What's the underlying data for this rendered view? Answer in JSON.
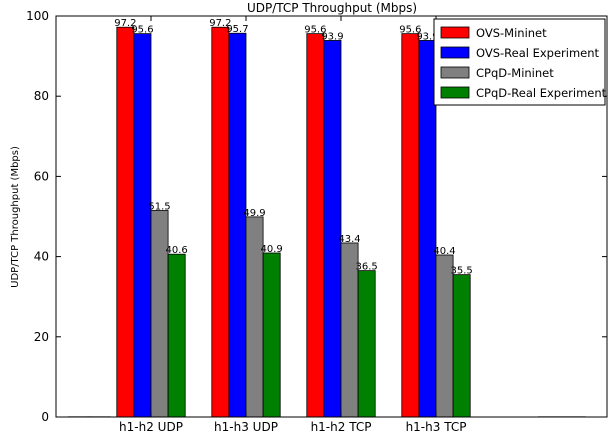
{
  "chart_data": {
    "type": "bar",
    "title": "UDP/TCP Throughput (Mbps)",
    "xlabel": "",
    "ylabel": "UDP/TCP Throughput (Mbps)",
    "ylim": [
      0,
      100
    ],
    "yticks": [
      0,
      20,
      40,
      60,
      80,
      100
    ],
    "grid": false,
    "legend_position": "top-right",
    "categories": [
      "h1-h2 UDP",
      "h1-h3 UDP",
      "h1-h2 TCP",
      "h1-h3 TCP"
    ],
    "series": [
      {
        "name": "OVS-Mininet",
        "color": "#ff0000",
        "values": [
          97.2,
          97.2,
          95.6,
          95.6
        ]
      },
      {
        "name": "OVS-Real Experiment",
        "color": "#0000ff",
        "values": [
          95.6,
          95.7,
          93.9,
          93.9
        ]
      },
      {
        "name": "CPqD-Mininet",
        "color": "#808080",
        "values": [
          51.5,
          49.9,
          43.4,
          40.4
        ]
      },
      {
        "name": "CPqD-Real Experiment",
        "color": "#008000",
        "values": [
          40.6,
          40.9,
          36.5,
          35.5
        ]
      }
    ]
  }
}
